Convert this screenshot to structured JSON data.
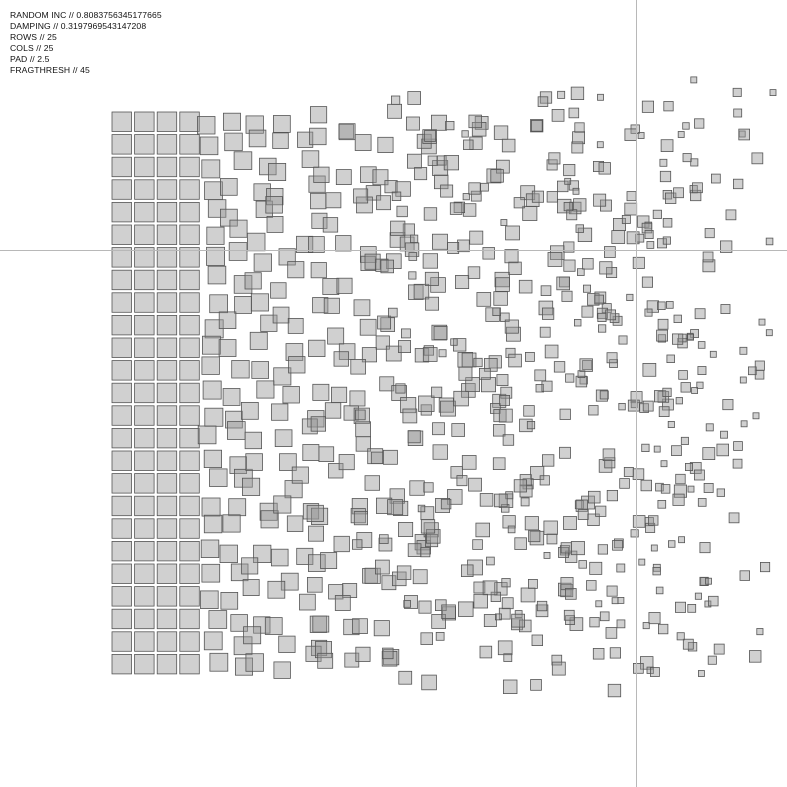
{
  "params": [
    {
      "label": "RANDOM INC // 0.8083756345177665"
    },
    {
      "label": "DAMPING // 0.3197969543147208"
    },
    {
      "label": "ROWS // 25"
    },
    {
      "label": "COLS // 25"
    },
    {
      "label": "PAD // 2.5"
    },
    {
      "label": "FRAGTHRESH // 45"
    }
  ],
  "grid": {
    "rows": 25,
    "cols": 25,
    "random_inc": 0.8083756345177665,
    "damping": 0.3197969543147208,
    "pad": 2.5,
    "fragthresh": 45
  },
  "colors": {
    "square_fill": "rgba(150,150,150,0.45)",
    "square_stroke": "#555555",
    "crosshair": "#b8b8b8"
  }
}
